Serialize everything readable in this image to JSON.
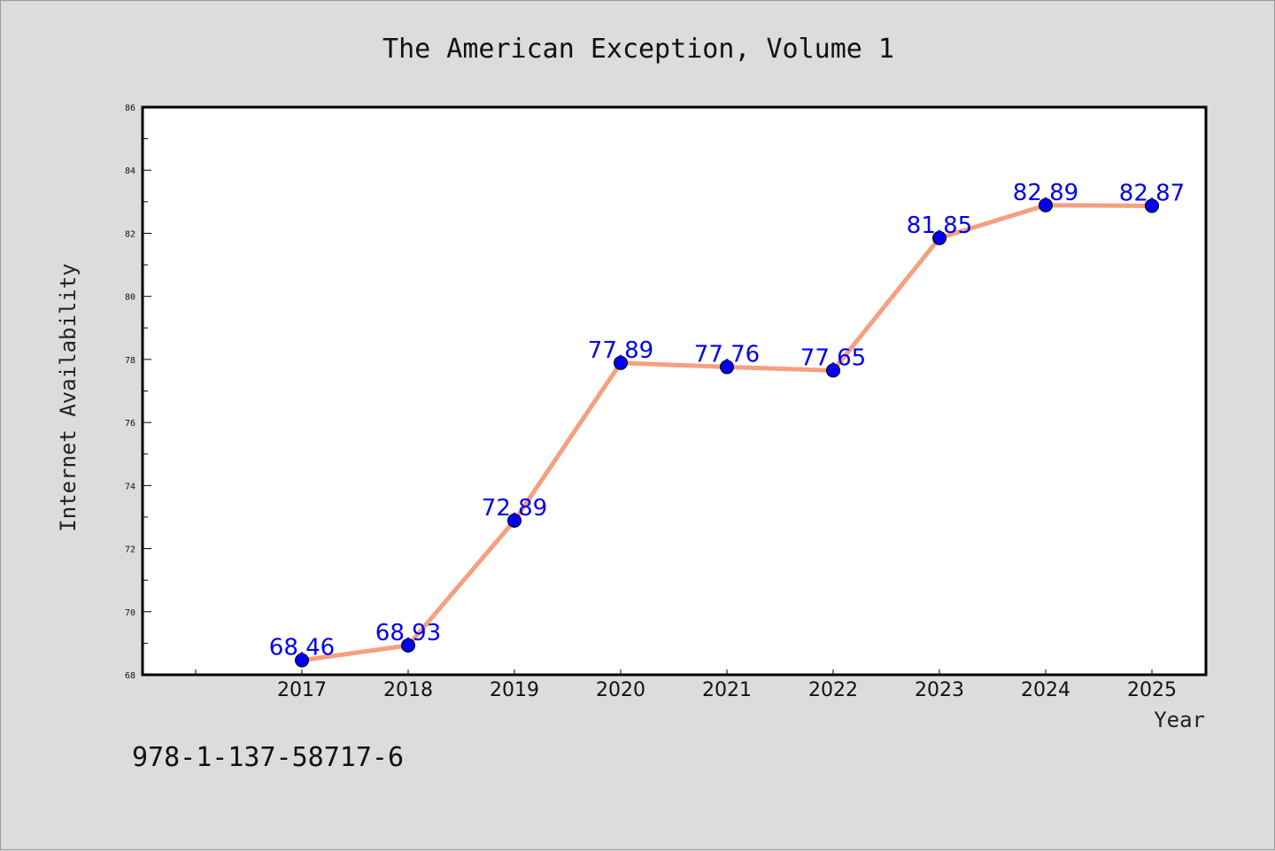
{
  "chart_data": {
    "type": "line",
    "title": "The American Exception, Volume 1",
    "xlabel": "Year",
    "ylabel": "Internet Availability",
    "categories": [
      "2017",
      "2018",
      "2019",
      "2020",
      "2021",
      "2022",
      "2023",
      "2024",
      "2025"
    ],
    "values": [
      68.46,
      68.93,
      72.89,
      77.89,
      77.76,
      77.65,
      81.85,
      82.89,
      82.87
    ],
    "data_labels": [
      "68.46",
      "68.93",
      "72.89",
      "77.89",
      "77.76",
      "77.65",
      "81.85",
      "82.89",
      "82.87"
    ],
    "ylim": [
      68,
      86
    ],
    "yticks": [
      "68",
      "70",
      "72",
      "74",
      "76",
      "78",
      "80",
      "82",
      "84",
      "86"
    ],
    "grid": false,
    "legend": "none",
    "line_color": "#f5a080",
    "marker_color": "#0000ee",
    "label_color": "#0000ee",
    "background": "#dcdcdc",
    "plot_background": "#ffffff"
  },
  "footer": {
    "isbn": "978-1-137-58717-6"
  }
}
